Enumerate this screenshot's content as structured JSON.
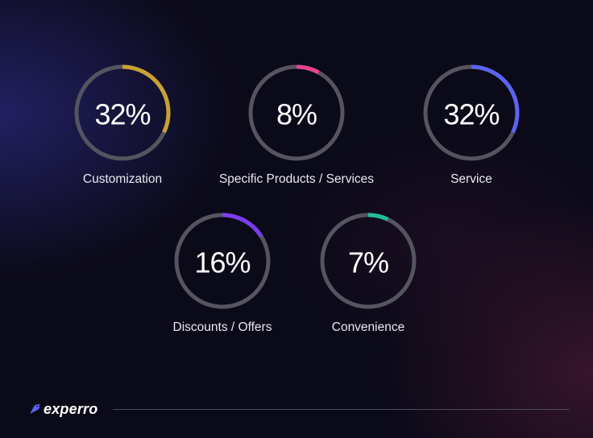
{
  "chart_data": {
    "type": "donut-rings",
    "items": [
      {
        "label": "Customization",
        "value": 32,
        "display": "32%",
        "color": "#c9a232"
      },
      {
        "label": "Specific Products / Services",
        "value": 8,
        "display": "8%",
        "color": "#e8438f"
      },
      {
        "label": "Service",
        "value": 32,
        "display": "32%",
        "color": "#5c63f2"
      },
      {
        "label": "Discounts / Offers",
        "value": 16,
        "display": "16%",
        "color": "#7b3df0"
      },
      {
        "label": "Convenience",
        "value": 7,
        "display": "7%",
        "color": "#1fc19a"
      }
    ],
    "track_color": "#55545f"
  },
  "footer": {
    "brand": "experro",
    "brand_icon": "bird-logo-icon",
    "accent": "#5c63f2"
  }
}
